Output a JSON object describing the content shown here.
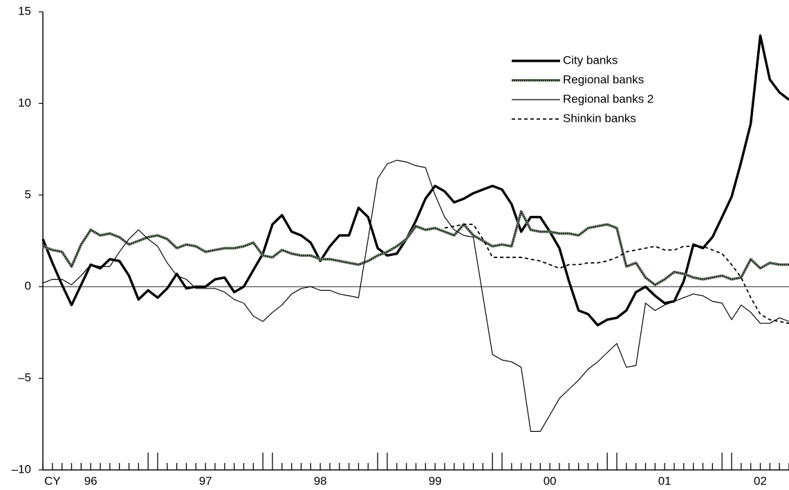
{
  "chart_data": {
    "type": "line",
    "categories": [
      null,
      "CY",
      null,
      null,
      null,
      "96",
      null,
      null,
      null,
      null,
      null,
      null,
      null,
      null,
      null,
      null,
      null,
      "97",
      null,
      null,
      null,
      null,
      null,
      null,
      null,
      null,
      null,
      null,
      null,
      "98",
      null,
      null,
      null,
      null,
      null,
      null,
      null,
      null,
      null,
      null,
      null,
      "99",
      null,
      null,
      null,
      null,
      null,
      null,
      null,
      null,
      null,
      null,
      null,
      "00",
      null,
      null,
      null,
      null,
      null,
      null,
      null,
      null,
      null,
      null,
      null,
      "01",
      null,
      null,
      null,
      null,
      null,
      null,
      null,
      null,
      null,
      "02",
      null,
      null,
      null
    ],
    "series": [
      {
        "name": "City banks",
        "color": "#000000",
        "style": "thick",
        "values": [
          2.6,
          1.3,
          0.1,
          -1.0,
          0.1,
          1.2,
          1.0,
          1.5,
          1.4,
          0.6,
          -0.7,
          -0.2,
          -0.6,
          -0.1,
          0.7,
          -0.1,
          0,
          0,
          0.4,
          0.5,
          -0.3,
          0,
          0.9,
          1.8,
          3.4,
          3.9,
          3.0,
          2.8,
          2.4,
          1.4,
          2.2,
          2.8,
          2.8,
          4.3,
          3.8,
          2.1,
          1.7,
          1.8,
          2.6,
          3.6,
          4.8,
          5.5,
          5.2,
          4.6,
          4.8,
          5.1,
          5.3,
          5.5,
          5.3,
          4.5,
          3.0,
          3.8,
          3.8,
          3.0,
          2.1,
          0.3,
          -1.3,
          -1.5,
          -2.1,
          -1.8,
          -1.7,
          -1.3,
          -0.3,
          0,
          -0.5,
          -0.9,
          -0.8,
          0.3,
          2.3,
          2.1,
          2.7,
          3.8,
          4.9,
          6.8,
          8.9,
          13.7,
          11.3,
          10.6,
          10.2
        ]
      },
      {
        "name": "Regional banks",
        "color": "#7a8a78",
        "style": "dotted",
        "values": [
          2.2,
          2.0,
          1.9,
          1.1,
          2.3,
          3.1,
          2.8,
          2.9,
          2.7,
          2.3,
          2.5,
          2.7,
          2.8,
          2.6,
          2.1,
          2.3,
          2.2,
          1.9,
          2.0,
          2.1,
          2.1,
          2.2,
          2.4,
          1.7,
          1.6,
          2.0,
          1.8,
          1.7,
          1.7,
          1.5,
          1.5,
          1.4,
          1.3,
          1.2,
          1.4,
          1.7,
          1.9,
          2.2,
          2.6,
          3.3,
          3.1,
          3.2,
          3.0,
          2.8,
          3.4,
          2.8,
          2.5,
          2.2,
          2.3,
          2.2,
          4.1,
          3.1,
          3.0,
          3.0,
          2.9,
          2.9,
          2.8,
          3.2,
          3.3,
          3.4,
          3.2,
          1.1,
          1.3,
          0.5,
          0.1,
          0.4,
          0.8,
          0.7,
          0.5,
          0.4,
          0.5,
          0.6,
          0.4,
          0.5,
          1.5,
          1.0,
          1.3,
          1.2,
          1.2
        ]
      },
      {
        "name": "Regional banks 2",
        "color": "#000000",
        "style": "thin",
        "values": [
          0.2,
          0.4,
          0.4,
          0.1,
          0.6,
          1.2,
          1.1,
          1.1,
          1.9,
          2.6,
          3.1,
          2.6,
          2.2,
          1.3,
          0.6,
          0.4,
          -0.1,
          -0.1,
          -0.1,
          -0.3,
          -0.7,
          -0.9,
          -1.6,
          -1.9,
          -1.4,
          -1.0,
          -0.4,
          -0.1,
          0,
          -0.2,
          -0.2,
          -0.4,
          -0.5,
          -0.6,
          2.6,
          5.9,
          6.7,
          6.9,
          6.8,
          6.6,
          6.5,
          5.0,
          3.8,
          3.1,
          2.8,
          2.7,
          -0.5,
          -3.7,
          -4.0,
          -4.1,
          -4.4,
          -7.9,
          -7.9,
          -7.0,
          -6.1,
          -5.6,
          -5.1,
          -4.5,
          -4.1,
          -3.6,
          -3.1,
          -4.4,
          -4.3,
          -0.9,
          -1.3,
          -1.0,
          -0.8,
          -0.6,
          -0.4,
          -0.5,
          -0.8,
          -0.9,
          -1.8,
          -1.0,
          -1.4,
          -2.0,
          -2.0,
          -1.7,
          -1.9
        ]
      },
      {
        "name": "Shinkin banks",
        "color": "#000000",
        "style": "dashed",
        "values": [
          null,
          null,
          null,
          null,
          null,
          null,
          null,
          null,
          null,
          null,
          null,
          null,
          null,
          null,
          null,
          null,
          null,
          null,
          null,
          null,
          null,
          null,
          null,
          null,
          null,
          null,
          null,
          null,
          null,
          null,
          null,
          null,
          null,
          null,
          null,
          null,
          null,
          null,
          null,
          null,
          null,
          null,
          3.2,
          3.3,
          3.4,
          3.4,
          2.6,
          1.6,
          1.6,
          1.6,
          1.6,
          1.5,
          1.4,
          1.2,
          1.0,
          1.2,
          1.2,
          1.3,
          1.3,
          1.4,
          1.6,
          1.9,
          2.0,
          2.1,
          2.2,
          2.0,
          2.0,
          2.2,
          2.2,
          2.2,
          2.0,
          1.8,
          1.2,
          0.5,
          -0.6,
          -1.5,
          -1.8,
          -1.9,
          -2.0
        ]
      }
    ],
    "ylim": [
      -10,
      15
    ],
    "yticks": [
      {
        "value": -10,
        "label": "–10"
      },
      {
        "value": -5,
        "label": "–5"
      },
      0,
      5,
      10,
      15
    ],
    "legend": "upper right"
  }
}
